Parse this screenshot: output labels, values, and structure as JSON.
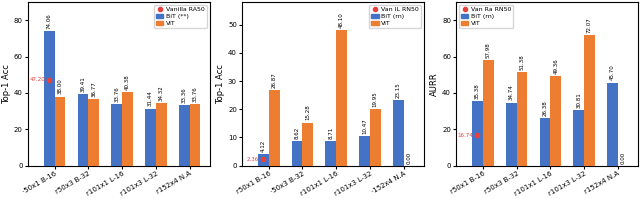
{
  "chart_data": [
    {
      "type": "bar",
      "ylabel": "Top-1 Acc",
      "categories": [
        "·50x1 B-16",
        "r50x3 B-32",
        "r101x1 L-16",
        "r101x3 L-32",
        "r152x4 N.A"
      ],
      "series": [
        {
          "name": "Vanilla RA50",
          "type": "scatter",
          "marker": "o",
          "color": "#e8413c",
          "values": [
            47.2,
            null,
            null,
            null,
            null
          ],
          "value_labels": [
            "47.20",
            null,
            null,
            null,
            null
          ]
        },
        {
          "name": "BiT (**)",
          "type": "bar",
          "color": "#4472c4",
          "values": [
            74.06,
            39.41,
            33.76,
            31.44,
            33.36
          ],
          "value_labels": [
            "74.06",
            "39.41",
            "33.76",
            "31.44",
            "33.36"
          ]
        },
        {
          "name": "ViT",
          "type": "bar",
          "color": "#ed7d31",
          "values": [
            38.0,
            36.77,
            40.38,
            34.32,
            33.76
          ],
          "value_labels": [
            "38.00",
            "36.77",
            "40.38",
            "34.32",
            "33.76"
          ]
        }
      ],
      "ylim": [
        0,
        90
      ],
      "yticks": [
        0,
        20,
        40,
        60,
        80
      ],
      "legend": "upper right",
      "data_labels": true
    },
    {
      "type": "bar",
      "ylabel": "Top-1 Acc",
      "categories": [
        "r50x1 B-16",
        "·50x3 B-32",
        "r101x1 L-16",
        "r101x3 L-32",
        "·152x4 N.A"
      ],
      "series": [
        {
          "name": "Van IL RN50",
          "type": "scatter",
          "marker": "o",
          "color": "#e8413c",
          "values": [
            2.36,
            null,
            null,
            null,
            null
          ],
          "value_labels": [
            "2.36",
            null,
            null,
            null,
            null
          ]
        },
        {
          "name": "BiT (rn)",
          "type": "bar",
          "color": "#4472c4",
          "values": [
            4.12,
            8.62,
            8.71,
            10.47,
            23.15
          ],
          "value_labels": [
            "4.12",
            "8.62",
            "8.71",
            "10.47",
            "23.15"
          ]
        },
        {
          "name": "ViT",
          "type": "bar",
          "color": "#ed7d31",
          "values": [
            26.87,
            15.28,
            48.1,
            19.95,
            0.0
          ],
          "value_labels": [
            "26.87",
            "15.28",
            "48.10",
            "19.95",
            "0.00"
          ]
        }
      ],
      "ylim": [
        0,
        58
      ],
      "yticks": [
        0,
        10,
        20,
        30,
        40,
        50
      ],
      "legend": "upper right",
      "data_labels": true
    },
    {
      "type": "bar",
      "ylabel": "AURR",
      "categories": [
        "r50x1 B-16",
        "r50x3 B-32",
        "r101x1 L-16",
        "r101x3 L-32",
        "r152x4 N.A"
      ],
      "series": [
        {
          "name": "Van Ra RN50",
          "type": "scatter",
          "marker": "o",
          "color": "#e8413c",
          "values": [
            16.74,
            null,
            null,
            null,
            null
          ],
          "value_labels": [
            "16.74",
            null,
            null,
            null,
            null
          ]
        },
        {
          "name": "BiT (rn)",
          "type": "bar",
          "color": "#4472c4",
          "values": [
            35.38,
            34.74,
            26.38,
            30.81,
            45.7
          ],
          "value_labels": [
            "35.38",
            "34.74",
            "26.38",
            "30.81",
            "45.70"
          ]
        },
        {
          "name": "ViT",
          "type": "bar",
          "color": "#ed7d31",
          "values": [
            57.98,
            51.38,
            49.36,
            72.07,
            0.0
          ],
          "value_labels": [
            "57.98",
            "51.38",
            "49.36",
            "72.07",
            "0.00"
          ]
        }
      ],
      "ylim": [
        0,
        90
      ],
      "yticks": [
        0,
        20,
        40,
        60,
        80
      ],
      "legend": "upper left",
      "data_labels": true
    }
  ]
}
